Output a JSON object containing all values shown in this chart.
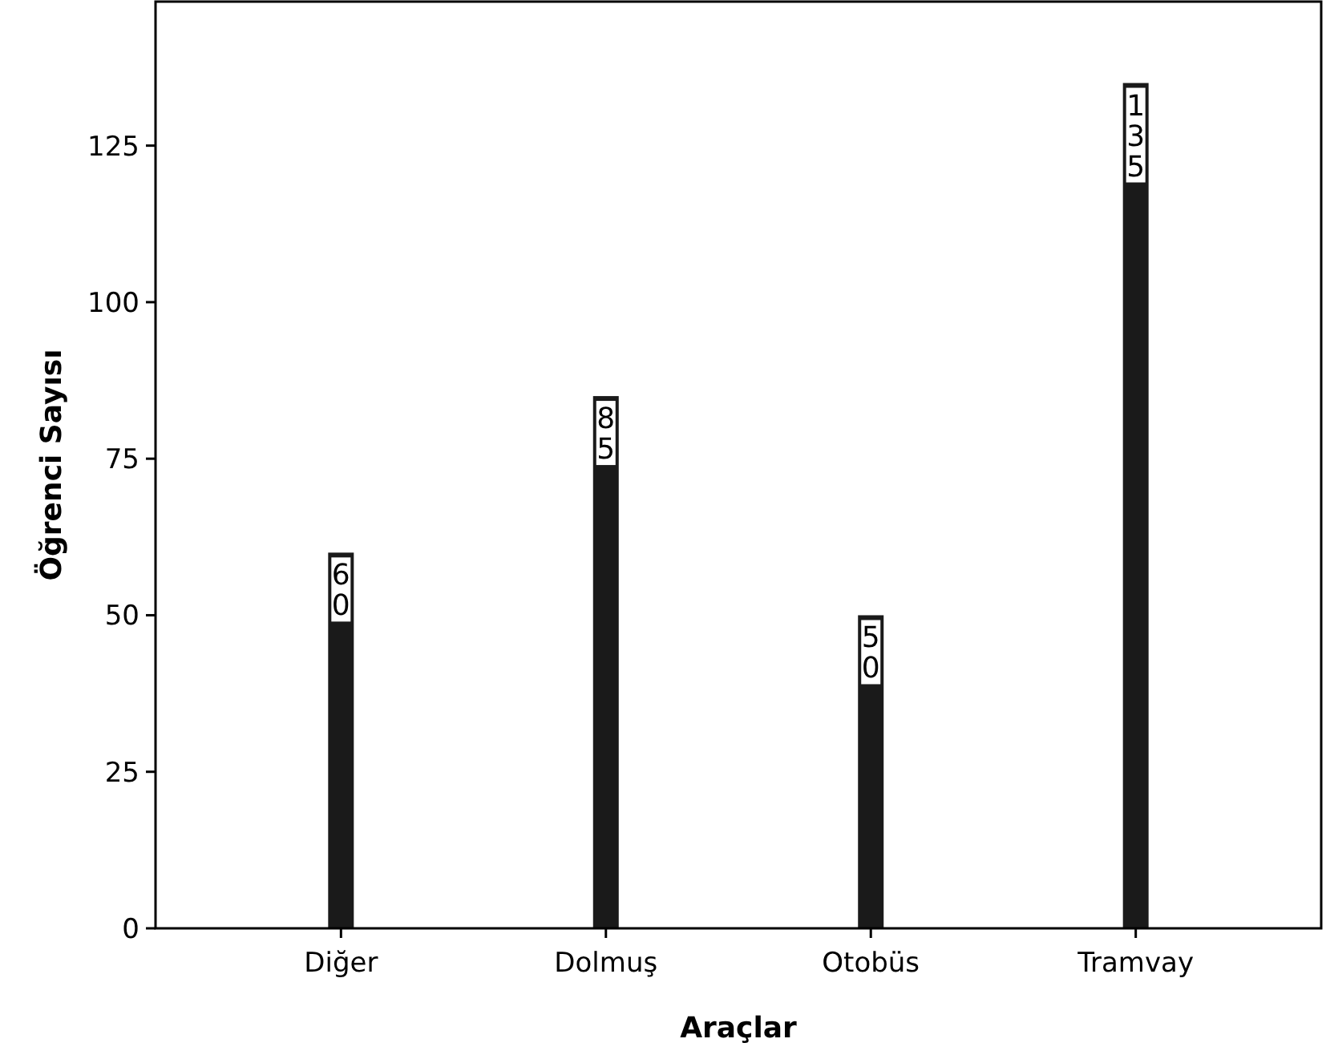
{
  "chart_data": {
    "type": "bar",
    "xlabel": "Araçlar",
    "ylabel": "Öğrenci Sayısı",
    "categories": [
      "Diğer",
      "Dolmuş",
      "Otobüs",
      "Tramvay"
    ],
    "values": [
      60,
      85,
      50,
      135
    ],
    "color": "#1a1a1a",
    "ylim": [
      0,
      148
    ],
    "yticks": [
      0,
      25,
      50,
      75,
      100,
      125
    ],
    "grid": false,
    "data_labels": true
  }
}
